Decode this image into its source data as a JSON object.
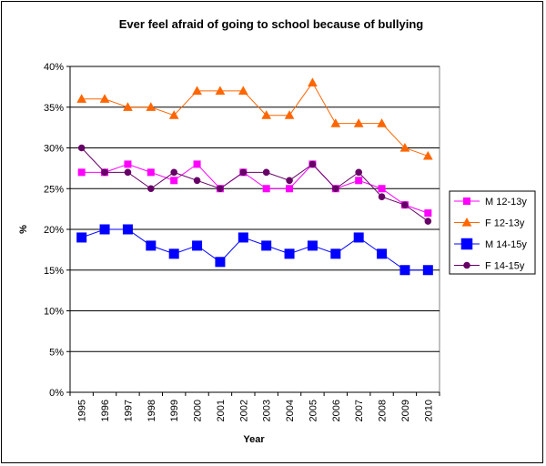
{
  "chart_data": {
    "type": "line",
    "title": "Ever feel afraid of going to school because of bullying",
    "xlabel": "Year",
    "ylabel": "%",
    "ylim": [
      0,
      40
    ],
    "y_ticks": [
      "0%",
      "5%",
      "10%",
      "15%",
      "20%",
      "25%",
      "30%",
      "35%",
      "40%"
    ],
    "categories": [
      "1995",
      "1996",
      "1997",
      "1998",
      "1999",
      "2000",
      "2001",
      "2002",
      "2003",
      "2004",
      "2005",
      "2006",
      "2007",
      "2008",
      "2009",
      "2010"
    ],
    "grid": "horizontal",
    "legend_position": "right",
    "series": [
      {
        "name": "M 12-13y",
        "color": "#ff00ff",
        "marker": "square-small",
        "values": [
          27,
          27,
          28,
          27,
          26,
          28,
          25,
          27,
          25,
          25,
          28,
          25,
          26,
          25,
          23,
          22
        ]
      },
      {
        "name": "F 12-13y",
        "color": "#ff6600",
        "marker": "triangle",
        "values": [
          36,
          36,
          35,
          35,
          34,
          37,
          37,
          37,
          34,
          34,
          38,
          33,
          33,
          33,
          30,
          29
        ]
      },
      {
        "name": "M 14-15y",
        "color": "#0000ff",
        "marker": "square-large",
        "values": [
          19,
          20,
          20,
          18,
          17,
          18,
          16,
          19,
          18,
          17,
          18,
          17,
          19,
          17,
          15,
          15
        ]
      },
      {
        "name": "F 14-15y",
        "color": "#660066",
        "marker": "circle",
        "values": [
          30,
          27,
          27,
          25,
          27,
          26,
          25,
          27,
          27,
          26,
          28,
          25,
          27,
          24,
          23,
          21
        ]
      }
    ]
  }
}
